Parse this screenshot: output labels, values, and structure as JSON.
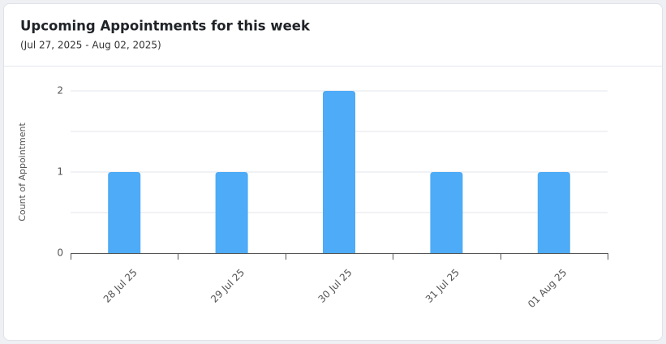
{
  "chart_data": {
    "type": "bar",
    "title": "Upcoming Appointments for this week",
    "subtitle": "(Jul 27, 2025 - Aug 02, 2025)",
    "y_label": "Count of Appointment",
    "categories": [
      "28 Jul 25",
      "29 Jul 25",
      "30 Jul 25",
      "31 Jul 25",
      "01 Aug 25"
    ],
    "values": [
      1,
      1,
      2,
      1,
      1
    ],
    "color": "#4dabf7",
    "ylim": [
      0,
      2
    ],
    "yticks": [
      0,
      1,
      2
    ],
    "grid": true
  }
}
